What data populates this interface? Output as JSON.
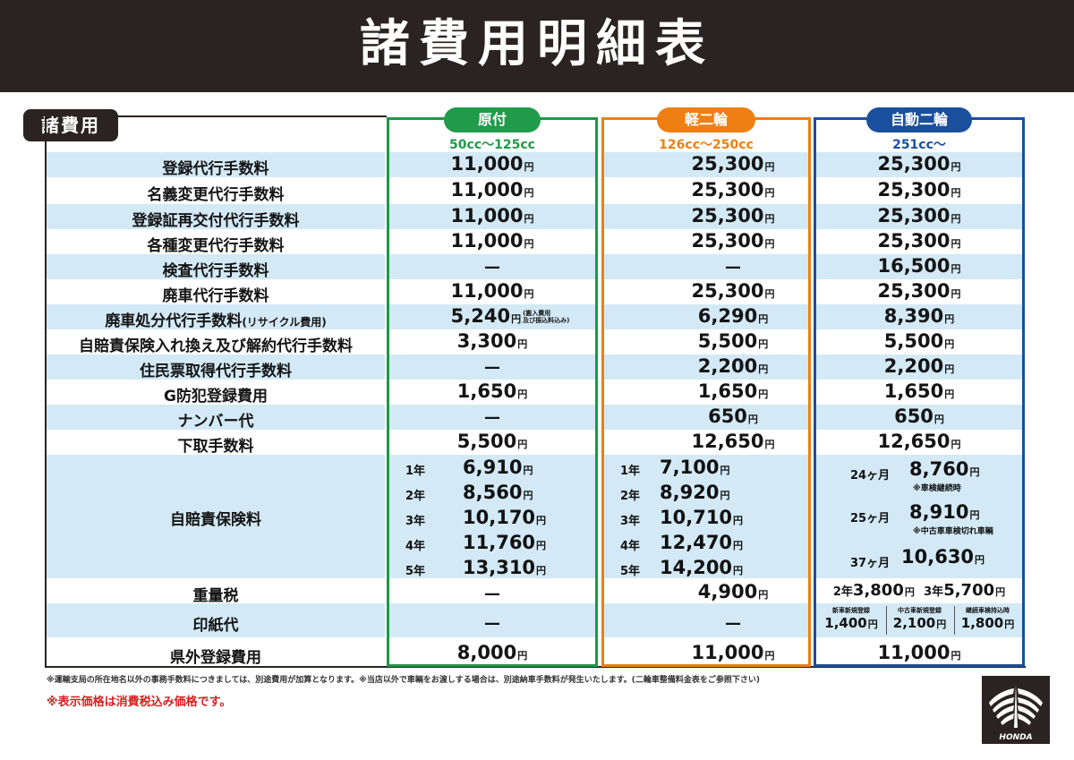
{
  "page": {
    "title": "諸費用明細表",
    "section_label": "諸費用"
  },
  "columns": [
    {
      "name": "原付",
      "cc": "50cc〜125cc",
      "color": "#1f9b49"
    },
    {
      "name": "軽二輪",
      "cc": "126cc〜250cc",
      "color": "#ef7f13"
    },
    {
      "name": "自動二輪",
      "cc": "251cc〜",
      "color": "#1a4f9e"
    }
  ],
  "rows": [
    {
      "label": "登録代行手数料",
      "v": [
        "11,000",
        "25,300",
        "25,300"
      ]
    },
    {
      "label": "名義変更代行手数料",
      "v": [
        "11,000",
        "25,300",
        "25,300"
      ]
    },
    {
      "label": "登録証再交付代行手数料",
      "v": [
        "11,000",
        "25,300",
        "25,300"
      ]
    },
    {
      "label": "各種変更代行手数料",
      "v": [
        "11,000",
        "25,300",
        "25,300"
      ]
    },
    {
      "label": "検査代行手数料",
      "v": [
        "—",
        "—",
        "16,500"
      ]
    },
    {
      "label": "廃車代行手数料",
      "v": [
        "11,000",
        "25,300",
        "25,300"
      ]
    },
    {
      "label": "廃車処分代行手数料",
      "label_sub": "(リサイクル費用)",
      "v": [
        "5,240",
        "6,290",
        "8,390"
      ],
      "note0": "(搬入費用\n及び振込料込み)"
    },
    {
      "label": "自賠責保険入れ換え及び解約代行手数料",
      "v": [
        "3,300",
        "5,500",
        "5,500"
      ]
    },
    {
      "label": "住民票取得代行手数料",
      "v": [
        "—",
        "2,200",
        "2,200"
      ]
    },
    {
      "label": "G防犯登録費用",
      "v": [
        "1,650",
        "1,650",
        "1,650"
      ]
    },
    {
      "label": "ナンバー代",
      "v": [
        "—",
        "650",
        "650"
      ]
    },
    {
      "label": "下取手数料",
      "v": [
        "5,500",
        "12,650",
        "12,650"
      ]
    }
  ],
  "jibaiseki": {
    "label": "自賠責保険料",
    "years": [
      "1年",
      "2年",
      "3年",
      "4年",
      "5年"
    ],
    "gentsuki": [
      "6,910",
      "8,560",
      "10,170",
      "11,760",
      "13,310"
    ],
    "keinirin": [
      "7,100",
      "8,920",
      "10,710",
      "12,470",
      "14,200"
    ],
    "jidonirin": [
      {
        "term": "24ヶ月",
        "value": "8,760",
        "note": "※車検継続時"
      },
      {
        "term": "25ヶ月",
        "value": "8,910",
        "note": "※中古車車検切れ車輌"
      },
      {
        "term": "37ヶ月",
        "value": "10,630",
        "note": ""
      }
    ]
  },
  "weight_tax": {
    "label": "重量税",
    "v": [
      "—",
      "4,900"
    ],
    "jidonirin": [
      {
        "term": "2年",
        "value": "3,800"
      },
      {
        "term": "3年",
        "value": "5,700"
      }
    ]
  },
  "stamp": {
    "label": "印紙代",
    "v": [
      "—",
      "—"
    ],
    "jidonirin": [
      {
        "head": "新車新規登録",
        "value": "1,400"
      },
      {
        "head": "中古車新規登録",
        "value": "2,100"
      },
      {
        "head": "継続車検持込時",
        "value": "1,800"
      }
    ]
  },
  "outside": {
    "label": "県外登録費用",
    "v": [
      "8,000",
      "11,000",
      "11,000"
    ]
  },
  "yen": "円",
  "footer": {
    "note": "※運輸支局の所在地名以外の事務手数料につきましては、別途費用が加算となります。※当店以外で車輌をお渡しする場合は、別途納車手数料が発生いたします。(二輪車整備料金表をご参照下さい)",
    "tax": "※表示価格は消費税込み価格です。"
  },
  "logo_text": "HONDA",
  "colors": {
    "row_blue": "#d3e9f6",
    "dark": "#2b2321",
    "red": "#d81e1e"
  }
}
